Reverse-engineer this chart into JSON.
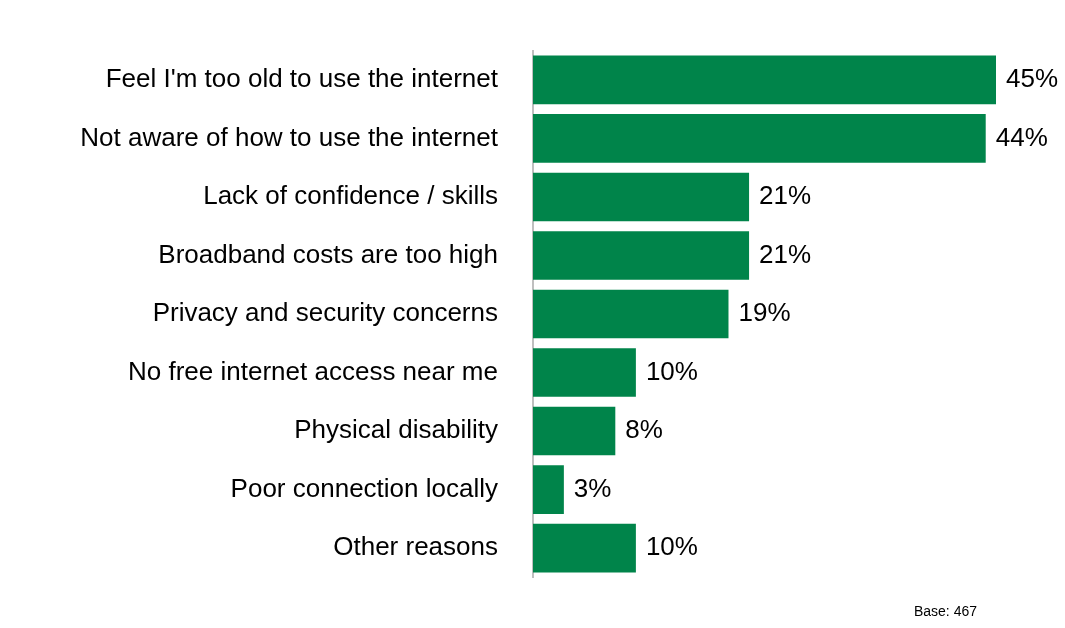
{
  "chart_data": {
    "type": "bar",
    "orientation": "horizontal",
    "tick_labels": "y",
    "categories": [
      "Feel I'm too old to use the internet",
      "Not aware of how to use the internet",
      "Lack of confidence / skills",
      "Broadband costs are too high",
      "Privacy and security concerns",
      "No free internet access near me",
      "Physical disability",
      "Poor connection locally",
      "Other reasons"
    ],
    "values": [
      45,
      44,
      21,
      21,
      19,
      10,
      8,
      3,
      10
    ],
    "value_labels": [
      "45%",
      "44%",
      "21%",
      "21%",
      "19%",
      "10%",
      "8%",
      "3%",
      "10%"
    ],
    "color": "#00844a",
    "annotations": [
      "Base: 467"
    ]
  }
}
